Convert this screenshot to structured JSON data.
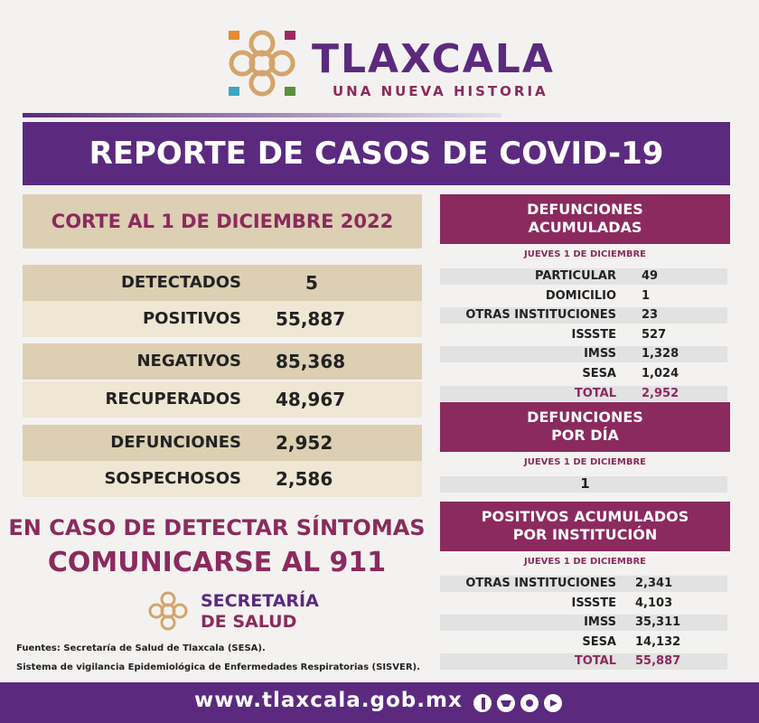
{
  "header": {
    "title": "TLAXCALA",
    "subtitle": "UNA NUEVA HISTORIA"
  },
  "banner": "REPORTE DE CASOS DE COVID-19",
  "summary": {
    "cut": "CORTE AL 1 DE DICIEMBRE 2022",
    "rows": [
      {
        "label": "DETECTADOS",
        "value": "5"
      },
      {
        "label": "POSITIVOS",
        "value": "55,887"
      },
      {
        "label": "NEGATIVOS",
        "value": "85,368"
      },
      {
        "label": "RECUPERADOS",
        "value": "48,967"
      },
      {
        "label": "DEFUNCIONES",
        "value": "2,952"
      },
      {
        "label": "SOSPECHOSOS",
        "value": "2,586"
      }
    ]
  },
  "alert": [
    "EN CASO DE DETECTAR SÍNTOMAS",
    "COMUNICARSE AL 911"
  ],
  "secretaria": [
    "SECRETARÍA",
    "DE SALUD"
  ],
  "sources": [
    "Fuentes:  Secretaría de Salud de Tlaxcala (SESA).",
    "Sistema de vigilancia Epidemiológica de Enfermedades Respiratorias (SISVER)."
  ],
  "panels": [
    {
      "title": [
        "DEFUNCIONES",
        "ACUMULADAS"
      ],
      "date": "JUEVES 1 DE DICIEMBRE",
      "rows": [
        {
          "label": "PARTICULAR",
          "value": "49"
        },
        {
          "label": "DOMICILIO",
          "value": "1"
        },
        {
          "label": "OTRAS INSTITUCIONES",
          "value": "23"
        },
        {
          "label": "ISSSTE",
          "value": "527"
        },
        {
          "label": "IMSS",
          "value": "1,328"
        },
        {
          "label": "SESA",
          "value": "1,024"
        },
        {
          "label": "TOTAL",
          "value": "2,952"
        }
      ]
    },
    {
      "title": [
        "DEFUNCIONES",
        "POR DÍA"
      ],
      "date": "JUEVES 1 DE DICIEMBRE",
      "rows": [
        {
          "value": "1"
        }
      ]
    },
    {
      "title": [
        "POSITIVOS ACUMULADOS",
        "POR INSTITUCIÓN"
      ],
      "date": "JUEVES 1 DE DICIEMBRE",
      "rows": [
        {
          "label": "OTRAS INSTITUCIONES",
          "value": "2,341"
        },
        {
          "label": "ISSSTE",
          "value": "4,103"
        },
        {
          "label": "IMSS",
          "value": "35,311"
        },
        {
          "label": "SESA",
          "value": "14,132"
        },
        {
          "label": "TOTAL",
          "value": "55,887"
        }
      ]
    }
  ],
  "footer": "www.tlaxcala.gob.mx"
}
